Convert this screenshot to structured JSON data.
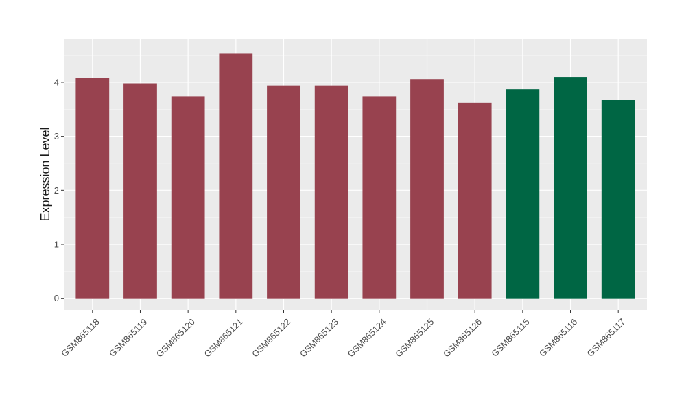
{
  "chart_data": {
    "type": "bar",
    "ylabel": "Expression Level",
    "xlabel": "",
    "ylim": [
      -0.22,
      4.8
    ],
    "yticks": [
      0,
      1,
      2,
      3,
      4
    ],
    "categories": [
      "GSM865118",
      "GSM865119",
      "GSM865120",
      "GSM865121",
      "GSM865122",
      "GSM865123",
      "GSM865124",
      "GSM865125",
      "GSM865126",
      "GSM865115",
      "GSM865116",
      "GSM865117"
    ],
    "values": [
      4.08,
      3.98,
      3.74,
      4.54,
      3.94,
      3.94,
      3.74,
      4.06,
      3.62,
      3.87,
      4.1,
      3.68
    ],
    "bar_colors": [
      "#98424f",
      "#98424f",
      "#98424f",
      "#98424f",
      "#98424f",
      "#98424f",
      "#98424f",
      "#98424f",
      "#98424f",
      "#006644",
      "#006644",
      "#006644"
    ],
    "panel_background": "#ebebeb",
    "grid": true,
    "legend": "none"
  }
}
